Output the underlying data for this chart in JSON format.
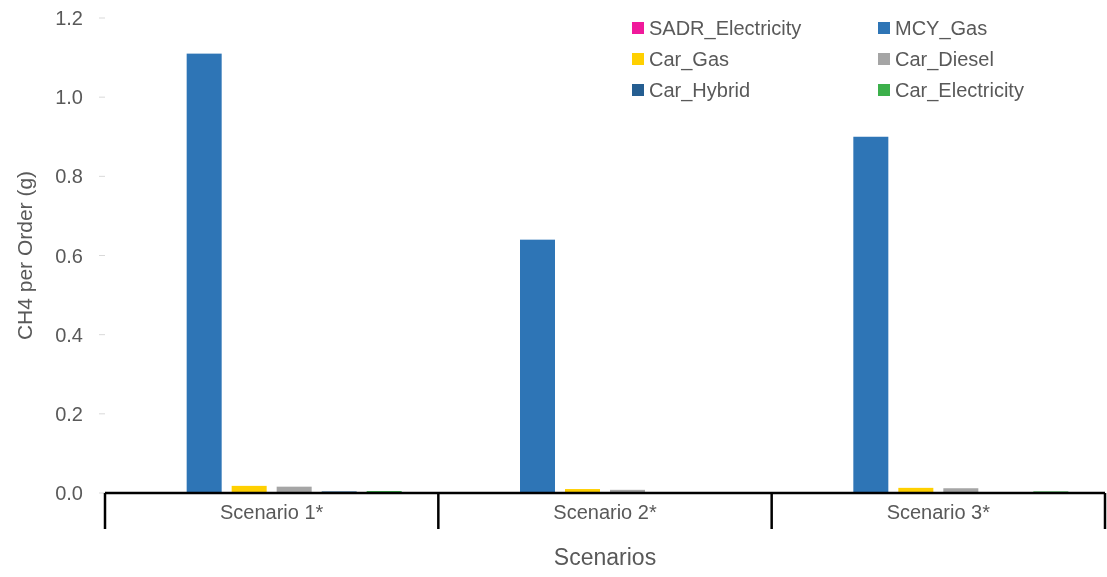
{
  "chart_data": {
    "type": "bar",
    "xlabel": "Scenarios",
    "ylabel": "CH4 per Order (g)",
    "categories": [
      "Scenario 1*",
      "Scenario 2*",
      "Scenario 3*"
    ],
    "series": [
      {
        "name": "SADR_Electricity",
        "color": "#f0199b",
        "values": [
          0,
          0,
          0
        ]
      },
      {
        "name": "MCY_Gas",
        "color": "#2e75b6",
        "values": [
          1.11,
          0.64,
          0.9
        ]
      },
      {
        "name": "Car_Gas",
        "color": "#ffd000",
        "values": [
          0.018,
          0.01,
          0.013
        ]
      },
      {
        "name": "Car_Diesel",
        "color": "#a5a5a5",
        "values": [
          0.016,
          0.008,
          0.012
        ]
      },
      {
        "name": "Car_Hybrid",
        "color": "#255e91",
        "values": [
          0.004,
          0,
          null
        ]
      },
      {
        "name": "Car_Electricity",
        "color": "#3cb04b",
        "values": [
          0.005,
          0,
          0.004
        ]
      }
    ],
    "ylim": [
      0,
      1.2
    ],
    "yticks": [
      {
        "value": 0,
        "label": "0.0"
      },
      0.2,
      0.4,
      0.6,
      0.8,
      {
        "value": 1,
        "label": "1.0"
      },
      1.2
    ],
    "grid": false,
    "legend": "top right"
  }
}
